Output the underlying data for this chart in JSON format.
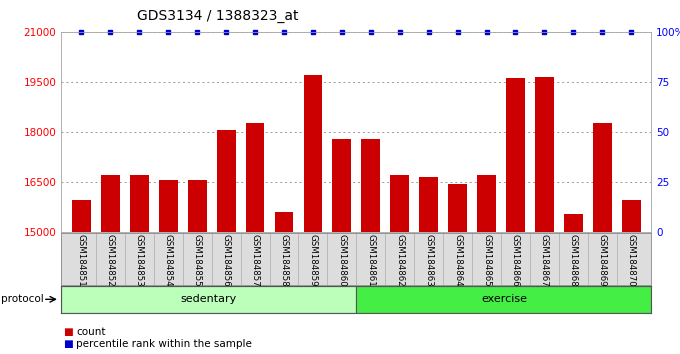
{
  "title": "GDS3134 / 1388323_at",
  "samples": [
    "GSM184851",
    "GSM184852",
    "GSM184853",
    "GSM184854",
    "GSM184855",
    "GSM184856",
    "GSM184857",
    "GSM184858",
    "GSM184859",
    "GSM184860",
    "GSM184861",
    "GSM184862",
    "GSM184863",
    "GSM184864",
    "GSM184865",
    "GSM184866",
    "GSM184867",
    "GSM184868",
    "GSM184869",
    "GSM184870"
  ],
  "counts": [
    15950,
    16700,
    16720,
    16560,
    16560,
    18050,
    18280,
    15600,
    19720,
    17800,
    17800,
    16700,
    16650,
    16450,
    16700,
    19620,
    19650,
    15550,
    18280,
    15950
  ],
  "bar_color": "#cc0000",
  "dot_color": "#0000cc",
  "ylim_left": [
    15000,
    21000
  ],
  "ylim_right": [
    0,
    100
  ],
  "yticks_left": [
    15000,
    16500,
    18000,
    19500,
    21000
  ],
  "ytick_labels_left": [
    "15000",
    "16500",
    "18000",
    "19500",
    "21000"
  ],
  "yticks_right": [
    0,
    25,
    50,
    75,
    100
  ],
  "ytick_labels_right": [
    "0",
    "25",
    "50",
    "75",
    "100%"
  ],
  "sedentary_count": 10,
  "exercise_count": 10,
  "sedentary_color": "#bbffbb",
  "exercise_color": "#44ee44",
  "protocol_label": "protocol",
  "sedentary_label": "sedentary",
  "exercise_label": "exercise",
  "legend_count_label": "count",
  "legend_percentile_label": "percentile rank within the sample",
  "background_color": "#ffffff",
  "grid_color": "#999999",
  "title_fontsize": 10,
  "bar_width": 0.65
}
